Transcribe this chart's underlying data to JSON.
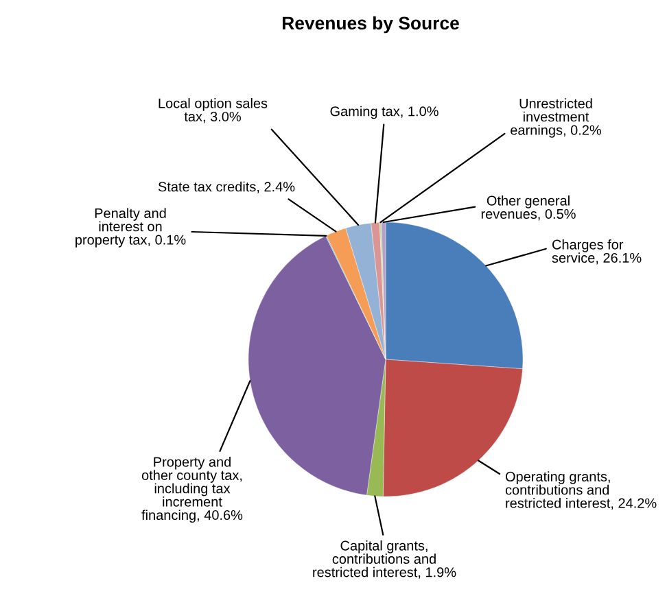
{
  "chart_data": {
    "type": "pie",
    "title": "Revenues by Source",
    "categories": [
      "Charges for\nservice",
      "Operating grants,\ncontributions and\nrestricted interest",
      "Capital grants,\ncontributions and\nrestricted interest",
      "Property and\nother county tax,\nincluding tax\nincrement\nfinancing",
      "Penalty and\ninterest on\nproperty tax",
      "State tax credits",
      "Local option sales\ntax",
      "Gaming tax",
      "Unrestricted\ninvestment\nearnings",
      "Other general\nrevenues"
    ],
    "values": [
      26.1,
      24.2,
      1.9,
      40.6,
      0.1,
      2.4,
      3.0,
      1.0,
      0.2,
      0.5
    ],
    "value_labels": [
      "26.1%",
      "24.2%",
      "1.9%",
      "40.6%",
      "0.1%",
      "2.4%",
      "3.0%",
      "1.0%",
      "0.2%",
      "0.5%"
    ],
    "colors": [
      "#4a7ebb",
      "#be4b48",
      "#98b954",
      "#7d60a0",
      "#46aac5",
      "#f59d56",
      "#94b2d6",
      "#d99694",
      "#c3d69b",
      "#b3a2c7"
    ],
    "legend": false
  }
}
